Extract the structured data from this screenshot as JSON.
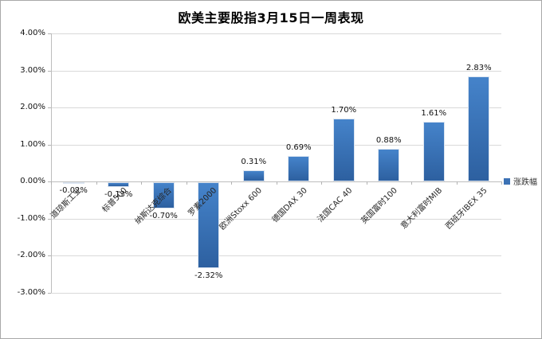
{
  "chart": {
    "title": "欧美主要股指3月15日一周表现",
    "legend": {
      "label": "涨跌幅"
    }
  },
  "chart_data": {
    "type": "bar",
    "title": "欧美主要股指3月15日一周表现",
    "series_name": "涨跌幅",
    "categories": [
      "道琼斯工业",
      "标普500",
      "纳斯达克综合",
      "罗素2000",
      "欧洲Stoxx 600",
      "德国DAX 30",
      "法国CAC 40",
      "英国富时100",
      "意大利富时MIB",
      "西班牙IBEX 35"
    ],
    "values": [
      -0.02,
      -0.13,
      -0.7,
      -2.32,
      0.31,
      0.69,
      1.7,
      0.88,
      1.61,
      2.83
    ],
    "value_labels": [
      "-0.02%",
      "-0.13%",
      "-0.70%",
      "-2.32%",
      "0.31%",
      "0.69%",
      "1.70%",
      "0.88%",
      "1.61%",
      "2.83%"
    ],
    "xlabel": "",
    "ylabel": "",
    "ylim": [
      -3,
      4
    ],
    "ytick_step": 1,
    "ytick_labels": [
      "4.00%",
      "3.00%",
      "2.00%",
      "1.00%",
      "0.00%",
      "-1.00%",
      "-2.00%",
      "-3.00%"
    ],
    "grid": true,
    "legend_position": "right",
    "colors": {
      "bar_top": "#4583CA",
      "bar_bottom": "#2D60A0",
      "bar_border": "#dbe5f1",
      "gridline": "#d9d9d9",
      "axis": "#bdbdbd",
      "legend_marker": "#3C72B5",
      "text": "#111111"
    }
  }
}
